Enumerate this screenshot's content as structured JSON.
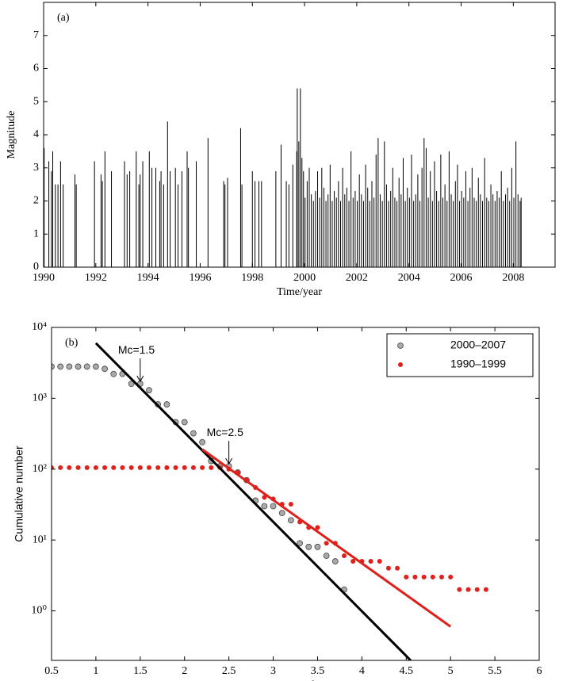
{
  "chart_data": [
    {
      "type": "stem",
      "panel_label": "(a)",
      "x_label": "Time/year",
      "y_label": "Magnitude",
      "xlim": [
        1990,
        2009.6
      ],
      "ylim": [
        0,
        8
      ],
      "xticks": [
        1990,
        1992,
        1994,
        1996,
        1998,
        2000,
        2002,
        2004,
        2006,
        2008
      ],
      "yticks": [
        0,
        1,
        2,
        3,
        4,
        5,
        6,
        7
      ],
      "series": [
        {
          "color": "#000000",
          "x": [
            1990.02,
            1990.2,
            1990.3,
            1990.35,
            1990.45,
            1990.55,
            1990.65,
            1990.75,
            1991.2,
            1991.25,
            1991.95,
            1992.2,
            1992.25,
            1992.35,
            1992.6,
            1993.1,
            1993.2,
            1993.3,
            1993.55,
            1993.65,
            1993.7,
            1993.8,
            1994.05,
            1994.15,
            1994.3,
            1994.45,
            1994.5,
            1994.6,
            1994.75,
            1994.85,
            1995.05,
            1995.15,
            1995.3,
            1995.5,
            1995.55,
            1995.85,
            1996.3,
            1996.9,
            1996.95,
            1997.05,
            1997.55,
            1997.6,
            1998.0,
            1998.1,
            1998.25,
            1998.35,
            1998.9,
            1999.1,
            1999.3,
            1999.4,
            1999.55,
            1999.7,
            1999.72,
            1999.78,
            1999.84,
            1999.9,
            1999.96,
            2000.02,
            2000.1,
            2000.18,
            2000.26,
            2000.34,
            2000.42,
            2000.5,
            2000.58,
            2000.66,
            2000.74,
            2000.82,
            2000.9,
            2000.98,
            2001.06,
            2001.14,
            2001.22,
            2001.3,
            2001.38,
            2001.46,
            2001.54,
            2001.62,
            2001.7,
            2001.78,
            2001.86,
            2001.94,
            2002.02,
            2002.1,
            2002.18,
            2002.26,
            2002.34,
            2002.42,
            2002.5,
            2002.58,
            2002.66,
            2002.74,
            2002.82,
            2002.9,
            2002.98,
            2003.06,
            2003.14,
            2003.22,
            2003.3,
            2003.38,
            2003.46,
            2003.54,
            2003.62,
            2003.7,
            2003.78,
            2003.86,
            2003.94,
            2004.02,
            2004.1,
            2004.18,
            2004.26,
            2004.34,
            2004.42,
            2004.5,
            2004.58,
            2004.66,
            2004.74,
            2004.82,
            2004.9,
            2004.98,
            2005.06,
            2005.14,
            2005.22,
            2005.3,
            2005.38,
            2005.46,
            2005.54,
            2005.62,
            2005.7,
            2005.78,
            2005.86,
            2005.94,
            2006.02,
            2006.1,
            2006.18,
            2006.26,
            2006.34,
            2006.42,
            2006.5,
            2006.58,
            2006.66,
            2006.74,
            2006.82,
            2006.9,
            2006.98,
            2007.06,
            2007.14,
            2007.22,
            2007.3,
            2007.38,
            2007.46,
            2007.54,
            2007.62,
            2007.7,
            2007.78,
            2007.86,
            2007.94,
            2008.02,
            2008.1,
            2008.18,
            2008.26,
            2008.3
          ],
          "values": [
            3.6,
            3.2,
            2.9,
            3.5,
            2.5,
            2.5,
            3.2,
            2.5,
            2.8,
            2.5,
            3.2,
            2.8,
            2.6,
            3.5,
            2.9,
            3.2,
            2.8,
            2.9,
            3.5,
            2.5,
            2.8,
            3.2,
            3.5,
            3.0,
            3.0,
            2.6,
            2.9,
            2.5,
            4.4,
            2.9,
            3.0,
            2.5,
            2.9,
            3.5,
            3.0,
            3.2,
            3.9,
            2.6,
            2.5,
            2.7,
            4.2,
            2.5,
            2.9,
            2.6,
            2.6,
            2.6,
            2.9,
            3.7,
            2.6,
            2.5,
            3.1,
            3.5,
            5.4,
            3.8,
            5.4,
            3.3,
            2.9,
            2.1,
            2.6,
            3.0,
            2.2,
            2.0,
            2.3,
            2.9,
            2.1,
            3.0,
            2.4,
            2.0,
            2.2,
            3.1,
            2.0,
            2.3,
            2.1,
            2.6,
            2.0,
            3.0,
            2.2,
            2.4,
            2.0,
            3.5,
            2.1,
            2.3,
            2.0,
            2.8,
            2.2,
            2.0,
            3.1,
            2.4,
            2.0,
            2.6,
            2.1,
            3.4,
            3.9,
            2.2,
            2.0,
            3.8,
            2.5,
            2.0,
            2.3,
            3.0,
            2.1,
            2.0,
            2.7,
            2.2,
            3.3,
            2.0,
            2.4,
            2.1,
            3.4,
            2.0,
            2.2,
            2.8,
            2.0,
            3.0,
            3.9,
            3.6,
            2.1,
            2.9,
            2.0,
            3.2,
            2.3,
            2.0,
            3.4,
            2.1,
            2.5,
            2.0,
            3.5,
            2.2,
            2.0,
            2.6,
            3.1,
            2.0,
            2.3,
            2.1,
            2.9,
            2.0,
            2.4,
            3.0,
            2.1,
            2.0,
            2.7,
            2.2,
            2.0,
            3.3,
            2.1,
            2.0,
            2.5,
            2.2,
            2.0,
            2.3,
            2.1,
            2.9,
            2.0,
            2.2,
            2.4,
            2.0,
            3.0,
            2.1,
            3.8,
            2.2,
            2.0,
            2.1
          ]
        }
      ]
    },
    {
      "type": "scatter",
      "panel_label": "(b)",
      "x_label": "Magnitude",
      "y_label": "Cumulative number",
      "log_y": true,
      "legend": "upper right",
      "xlim": [
        0.5,
        6
      ],
      "ylim": [
        0.2,
        10000
      ],
      "xticks": [
        0.5,
        1,
        1.5,
        2,
        2.5,
        3,
        3.5,
        4,
        4.5,
        5,
        5.5,
        6
      ],
      "yticks": [
        {
          "value": 1,
          "label": "10⁰"
        },
        {
          "value": 10,
          "label": "10¹"
        },
        {
          "value": 100,
          "label": "10²"
        },
        {
          "value": 1000,
          "label": "10³"
        },
        {
          "value": 10000,
          "label": "10⁴"
        }
      ],
      "series": [
        {
          "type": "scatter",
          "name": "2000–2007",
          "color": "#aaaaaa",
          "x": [
            0.5,
            0.6,
            0.7,
            0.8,
            0.9,
            1.0,
            1.1,
            1.2,
            1.3,
            1.4,
            1.5,
            1.6,
            1.7,
            1.8,
            1.9,
            2.0,
            2.1,
            2.2,
            2.3,
            2.4,
            2.5,
            2.6,
            2.7,
            2.8,
            2.9,
            3.0,
            3.1,
            3.2,
            3.3,
            3.4,
            3.5,
            3.6,
            3.7,
            3.8
          ],
          "values": [
            2800,
            2800,
            2800,
            2800,
            2800,
            2800,
            2600,
            2200,
            2200,
            1600,
            1600,
            1300,
            820,
            820,
            460,
            460,
            320,
            240,
            130,
            110,
            110,
            90,
            70,
            36,
            30,
            30,
            24,
            19,
            9,
            8,
            8,
            6,
            5,
            2
          ]
        },
        {
          "type": "scatter",
          "name": "1990–1999",
          "color": "#e0201b",
          "x": [
            0.5,
            0.6,
            0.7,
            0.8,
            0.9,
            1.0,
            1.1,
            1.2,
            1.3,
            1.4,
            1.5,
            1.6,
            1.7,
            1.8,
            1.9,
            2.0,
            2.1,
            2.2,
            2.3,
            2.4,
            2.5,
            2.6,
            2.7,
            2.8,
            2.9,
            3.0,
            3.1,
            3.2,
            3.3,
            3.4,
            3.5,
            3.6,
            3.7,
            3.8,
            3.9,
            4.0,
            4.1,
            4.2,
            4.3,
            4.4,
            4.5,
            4.6,
            4.7,
            4.8,
            4.9,
            5.0,
            5.1,
            5.2,
            5.3,
            5.4
          ],
          "values": [
            105,
            105,
            105,
            105,
            105,
            105,
            105,
            105,
            105,
            105,
            105,
            105,
            105,
            105,
            105,
            105,
            105,
            105,
            105,
            105,
            100,
            90,
            70,
            55,
            40,
            38,
            32,
            32,
            18,
            15,
            15,
            9,
            9,
            6,
            5,
            5,
            5,
            5,
            4,
            4,
            3,
            3,
            3,
            3,
            3,
            3,
            2,
            2,
            2,
            2
          ]
        },
        {
          "type": "line",
          "color": "#000000",
          "x": [
            1.0,
            4.55
          ],
          "values": [
            6000,
            0.2
          ]
        },
        {
          "type": "line",
          "color": "#e0201b",
          "x": [
            2.2,
            5.0
          ],
          "values": [
            190,
            0.6
          ]
        }
      ],
      "annotations": [
        {
          "text": "Mc=1.5",
          "x": 1.5,
          "y": 1600
        },
        {
          "text": "Mc=2.5",
          "x": 2.5,
          "y": 110
        }
      ]
    }
  ]
}
